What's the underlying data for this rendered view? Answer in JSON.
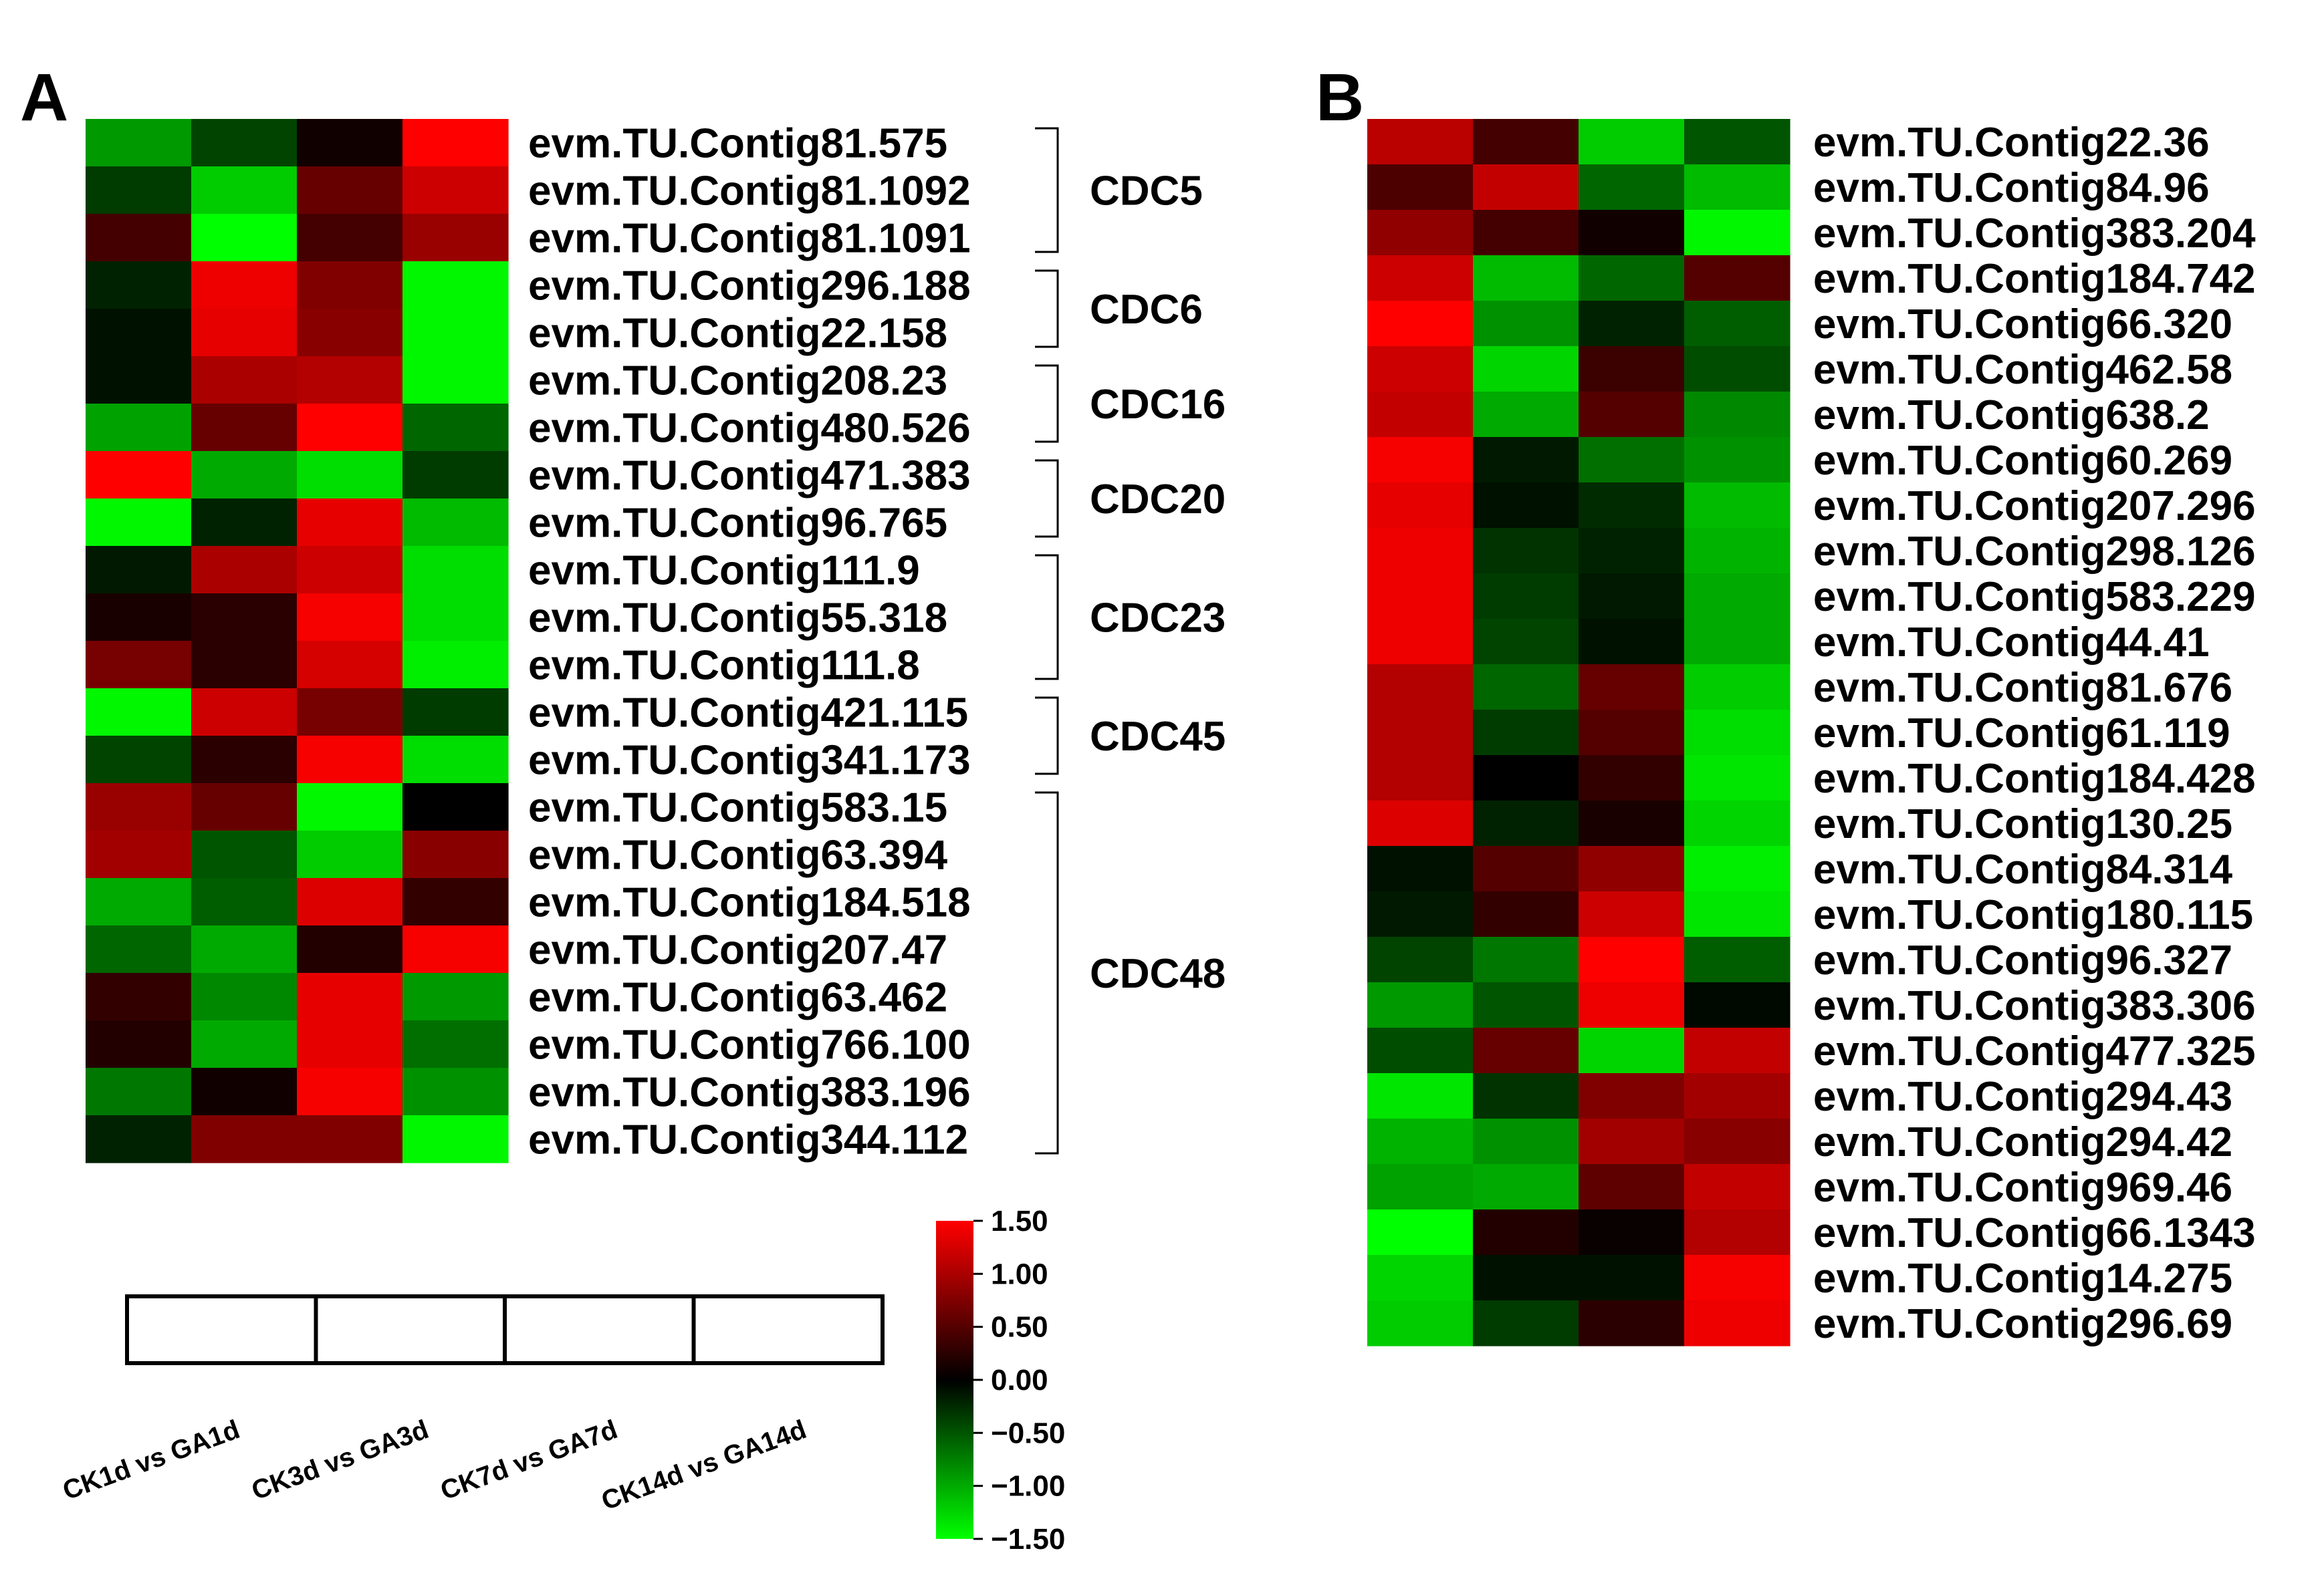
{
  "chart_data": [
    {
      "type": "heatmap",
      "panel": "A",
      "columns": [
        "CK1d vs GA1d",
        "CK3d vs GA3d",
        "CK7d vs GA7d",
        "CK14d vs GA14d"
      ],
      "colorbar": {
        "min": -1.5,
        "max": 1.5,
        "ticks": [
          "1.50",
          "1.00",
          "0.50",
          "0.00",
          "−0.50",
          "−1.00",
          "−1.50"
        ],
        "low_color": "#00ff00",
        "mid_color": "#000000",
        "high_color": "#ff0000"
      },
      "rows": [
        {
          "gene": "evm.TU.Contig81.575",
          "values": [
            -0.9,
            -0.4,
            0.1,
            1.5
          ]
        },
        {
          "gene": "evm.TU.Contig81.1092",
          "values": [
            -0.35,
            -1.2,
            0.6,
            1.2
          ]
        },
        {
          "gene": "evm.TU.Contig81.1091",
          "values": [
            0.4,
            -1.5,
            0.4,
            0.9
          ]
        },
        {
          "gene": "evm.TU.Contig296.188",
          "values": [
            -0.2,
            1.4,
            0.75,
            -1.45
          ]
        },
        {
          "gene": "evm.TU.Contig22.158",
          "values": [
            -0.1,
            1.35,
            0.8,
            -1.45
          ]
        },
        {
          "gene": "evm.TU.Contig208.23",
          "values": [
            -0.1,
            1.0,
            1.05,
            -1.45
          ]
        },
        {
          "gene": "evm.TU.Contig480.526",
          "values": [
            -0.95,
            0.6,
            1.5,
            -0.6
          ]
        },
        {
          "gene": "evm.TU.Contig471.383",
          "values": [
            1.5,
            -1.0,
            -1.3,
            -0.35
          ]
        },
        {
          "gene": "evm.TU.Contig96.765",
          "values": [
            -1.45,
            -0.2,
            1.35,
            -1.1
          ]
        },
        {
          "gene": "evm.TU.Contig111.9",
          "values": [
            -0.15,
            1.0,
            1.2,
            -1.3
          ]
        },
        {
          "gene": "evm.TU.Contig55.318",
          "values": [
            0.15,
            0.25,
            1.45,
            -1.3
          ]
        },
        {
          "gene": "evm.TU.Contig111.8",
          "values": [
            0.7,
            0.25,
            1.25,
            -1.4
          ]
        },
        {
          "gene": "evm.TU.Contig421.115",
          "values": [
            -1.45,
            1.2,
            0.7,
            -0.35
          ]
        },
        {
          "gene": "evm.TU.Contig341.173",
          "values": [
            -0.4,
            0.25,
            1.45,
            -1.3
          ]
        },
        {
          "gene": "evm.TU.Contig583.15",
          "values": [
            0.9,
            0.6,
            -1.45,
            0.0
          ]
        },
        {
          "gene": "evm.TU.Contig63.394",
          "values": [
            0.95,
            -0.5,
            -1.2,
            0.8
          ]
        },
        {
          "gene": "evm.TU.Contig184.518",
          "values": [
            -1.0,
            -0.55,
            1.3,
            0.3
          ]
        },
        {
          "gene": "evm.TU.Contig207.47",
          "values": [
            -0.6,
            -1.0,
            0.2,
            1.45
          ]
        },
        {
          "gene": "evm.TU.Contig63.462",
          "values": [
            0.3,
            -0.8,
            1.35,
            -0.9
          ]
        },
        {
          "gene": "evm.TU.Contig766.100",
          "values": [
            0.2,
            -1.0,
            1.35,
            -0.65
          ]
        },
        {
          "gene": "evm.TU.Contig383.196",
          "values": [
            -0.7,
            0.1,
            1.45,
            -0.85
          ]
        },
        {
          "gene": "evm.TU.Contig344.112",
          "values": [
            -0.2,
            0.75,
            0.75,
            -1.45
          ]
        }
      ],
      "groups": [
        {
          "label": "CDC5",
          "start": 0,
          "end": 2
        },
        {
          "label": "CDC6",
          "start": 3,
          "end": 4
        },
        {
          "label": "CDC16",
          "start": 5,
          "end": 6
        },
        {
          "label": "CDC20",
          "start": 7,
          "end": 8
        },
        {
          "label": "CDC23",
          "start": 9,
          "end": 11
        },
        {
          "label": "CDC45",
          "start": 12,
          "end": 13
        },
        {
          "label": "CDC48",
          "start": 14,
          "end": 21
        }
      ]
    },
    {
      "type": "heatmap",
      "panel": "B",
      "columns": [
        "CK1d vs GA1d",
        "CK3d vs GA3d",
        "CK7d vs GA7d",
        "CK14d vs GA14d"
      ],
      "rows": [
        {
          "gene": "evm.TU.Contig22.36",
          "values": [
            1.1,
            0.4,
            -1.2,
            -0.5
          ]
        },
        {
          "gene": "evm.TU.Contig84.96",
          "values": [
            0.45,
            1.15,
            -0.6,
            -1.1
          ]
        },
        {
          "gene": "evm.TU.Contig383.204",
          "values": [
            0.85,
            0.4,
            0.1,
            -1.45
          ]
        },
        {
          "gene": "evm.TU.Contig184.742",
          "values": [
            1.2,
            -1.1,
            -0.6,
            0.5
          ]
        },
        {
          "gene": "evm.TU.Contig66.320",
          "values": [
            1.5,
            -0.85,
            -0.2,
            -0.55
          ]
        },
        {
          "gene": "evm.TU.Contig462.58",
          "values": [
            1.2,
            -1.25,
            0.35,
            -0.45
          ]
        },
        {
          "gene": "evm.TU.Contig638.2",
          "values": [
            1.15,
            -1.0,
            0.5,
            -0.8
          ]
        },
        {
          "gene": "evm.TU.Contig60.269",
          "values": [
            1.45,
            -0.15,
            -0.65,
            -0.85
          ]
        },
        {
          "gene": "evm.TU.Contig207.296",
          "values": [
            1.35,
            -0.1,
            -0.25,
            -1.1
          ]
        },
        {
          "gene": "evm.TU.Contig298.126",
          "values": [
            1.4,
            -0.3,
            -0.2,
            -1.05
          ]
        },
        {
          "gene": "evm.TU.Contig583.229",
          "values": [
            1.4,
            -0.35,
            -0.15,
            -1.0
          ]
        },
        {
          "gene": "evm.TU.Contig44.41",
          "values": [
            1.4,
            -0.4,
            -0.1,
            -1.0
          ]
        },
        {
          "gene": "evm.TU.Contig81.676",
          "values": [
            1.05,
            -0.6,
            0.6,
            -1.2
          ]
        },
        {
          "gene": "evm.TU.Contig61.119",
          "values": [
            1.05,
            -0.35,
            0.5,
            -1.3
          ]
        },
        {
          "gene": "evm.TU.Contig184.428",
          "values": [
            1.05,
            0.0,
            0.3,
            -1.35
          ]
        },
        {
          "gene": "evm.TU.Contig130.25",
          "values": [
            1.3,
            -0.2,
            0.15,
            -1.25
          ]
        },
        {
          "gene": "evm.TU.Contig84.314",
          "values": [
            -0.1,
            0.5,
            0.85,
            -1.4
          ]
        },
        {
          "gene": "evm.TU.Contig180.115",
          "values": [
            -0.15,
            0.3,
            1.2,
            -1.35
          ]
        },
        {
          "gene": "evm.TU.Contig96.327",
          "values": [
            -0.4,
            -0.7,
            1.5,
            -0.55
          ]
        },
        {
          "gene": "evm.TU.Contig383.306",
          "values": [
            -0.9,
            -0.5,
            1.4,
            -0.05
          ]
        },
        {
          "gene": "evm.TU.Contig477.325",
          "values": [
            -0.45,
            0.6,
            -1.25,
            1.15
          ]
        },
        {
          "gene": "evm.TU.Contig294.43",
          "values": [
            -1.35,
            -0.3,
            0.75,
            0.95
          ]
        },
        {
          "gene": "evm.TU.Contig294.42",
          "values": [
            -1.05,
            -0.85,
            0.95,
            0.8
          ]
        },
        {
          "gene": "evm.TU.Contig969.46",
          "values": [
            -0.95,
            -1.0,
            0.55,
            1.15
          ]
        },
        {
          "gene": "evm.TU.Contig66.1343",
          "values": [
            -1.5,
            0.2,
            0.05,
            1.05
          ]
        },
        {
          "gene": "evm.TU.Contig14.275",
          "values": [
            -1.25,
            -0.1,
            -0.1,
            1.45
          ]
        },
        {
          "gene": "evm.TU.Contig296.69",
          "values": [
            -1.2,
            -0.35,
            0.25,
            1.4
          ]
        }
      ]
    }
  ],
  "panels": {
    "a": "A",
    "b": "B"
  }
}
